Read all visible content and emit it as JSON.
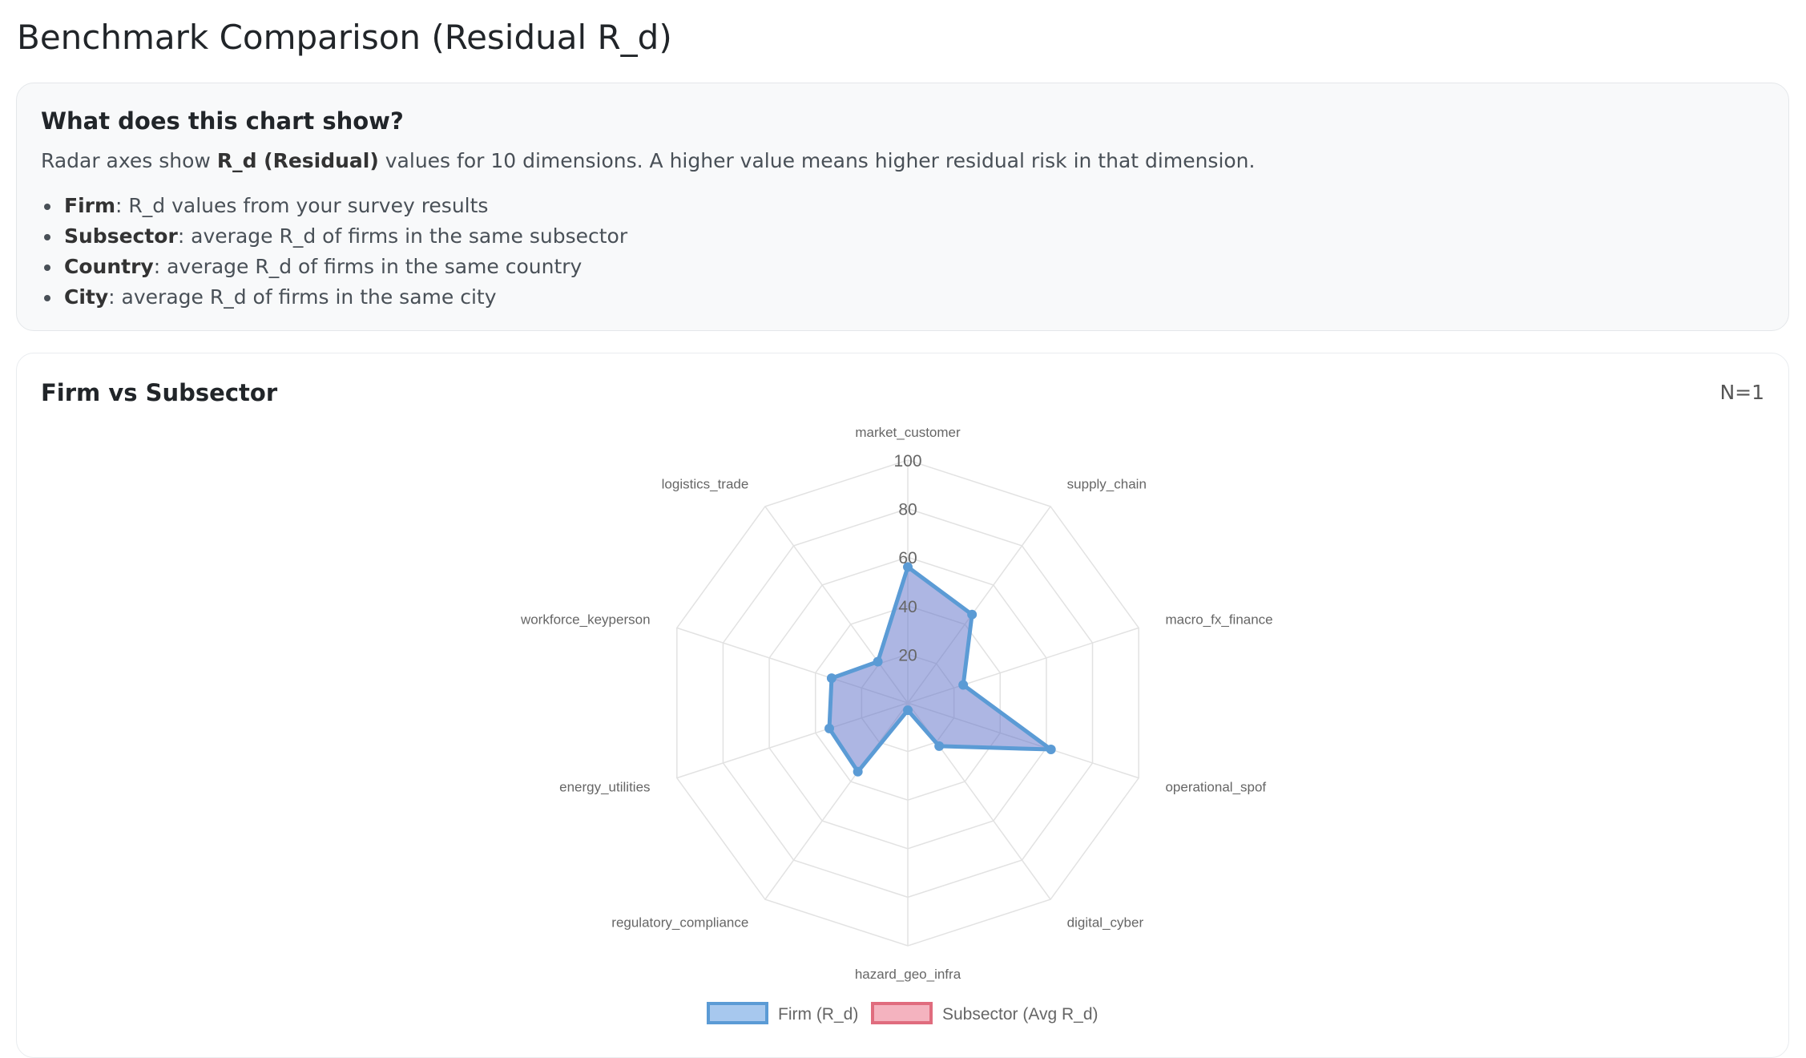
{
  "page": {
    "title": "Benchmark Comparison (Residual R_d)"
  },
  "info": {
    "title": "What does this chart show?",
    "desc_prefix": "Radar axes show ",
    "desc_bold": "R_d (Residual)",
    "desc_suffix": " values for 10 dimensions. A higher value means higher residual risk in that dimension.",
    "items": [
      {
        "term": "Firm",
        "text": ": R_d values from your survey results"
      },
      {
        "term": "Subsector",
        "text": ": average R_d of firms in the same subsector"
      },
      {
        "term": "Country",
        "text": ": average R_d of firms in the same country"
      },
      {
        "term": "City",
        "text": ": average R_d of firms in the same city"
      }
    ]
  },
  "chart_card": {
    "title": "Firm vs Subsector",
    "n_label": "N=1"
  },
  "colors": {
    "firm_line": "#5b9bd5",
    "firm_fill": "rgba(91,110,200,0.5)",
    "subsector_line": "#e06c7e",
    "subsector_fill": "#f4b3bf",
    "grid": "#e2e2e2"
  },
  "chart_data": {
    "type": "radar",
    "title": "",
    "axes": [
      "market_customer",
      "supply_chain",
      "macro_fx_finance",
      "operational_spof",
      "digital_cyber",
      "hazard_geo_infra",
      "regulatory_compliance",
      "energy_utilities",
      "workforce_keyperson",
      "logistics_trade"
    ],
    "range": [
      0,
      100
    ],
    "ticks": [
      20,
      40,
      60,
      80,
      100
    ],
    "grid": true,
    "legend_position": "bottom",
    "series": [
      {
        "name": "Firm (R_d)",
        "values": [
          56,
          45,
          24,
          62,
          22,
          3,
          35,
          34,
          33,
          21
        ]
      },
      {
        "name": "Subsector (Avg R_d)",
        "values": []
      }
    ]
  }
}
